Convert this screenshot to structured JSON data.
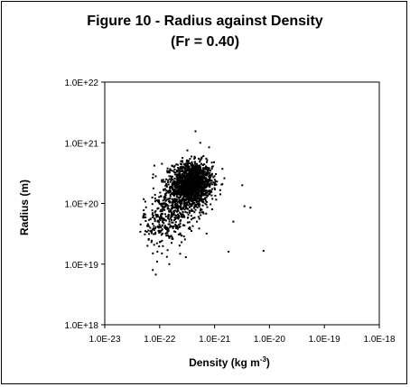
{
  "chart_data": {
    "type": "scatter",
    "title": "Figure 10 - Radius against  Density",
    "subtitle": "(Fr = 0.40)",
    "xlabel_main": "Density (kg m",
    "xlabel_sup": "-3",
    "xlabel_close": ")",
    "ylabel": "Radius (m)",
    "x_scale": "log",
    "y_scale": "log",
    "xlim": [
      1e-23,
      1e-18
    ],
    "ylim": [
      1e+18,
      1e+22
    ],
    "x_ticks": [
      "1.0E-23",
      "1.0E-22",
      "1.0E-21",
      "1.0E-20",
      "1.0E-19",
      "1.0E-18"
    ],
    "y_ticks": [
      "1.0E+18",
      "1.0E+19",
      "1.0E+20",
      "1.0E+21",
      "1.0E+22"
    ],
    "grid": false,
    "legend": "none",
    "marker_color": "#000000",
    "clusters": [
      {
        "center": [
          4e-22,
          2.2e+20
        ],
        "spread_log": [
          0.18,
          0.17
        ],
        "count": 1400
      },
      {
        "center": [
          2.5e-22,
          1.2e+20
        ],
        "spread_log": [
          0.22,
          0.2
        ],
        "count": 350
      },
      {
        "center": [
          1.3e-22,
          5e+19
        ],
        "spread_log": [
          0.2,
          0.2
        ],
        "count": 260
      }
    ],
    "outliers": [
      [
        4.5e-22,
        1.55e+21
      ],
      [
        5.5e-22,
        1e+21
      ],
      [
        3.2e-22,
        7.5e+20
      ],
      [
        7.6e-23,
        3e+20
      ],
      [
        8e-23,
        4.2e+20
      ],
      [
        1.1e-22,
        4.5e+20
      ],
      [
        8.5e-23,
        2.8e+20
      ],
      [
        3.2e-21,
        2e+20
      ],
      [
        3.5e-21,
        9e+19
      ],
      [
        2.2e-21,
        5e+19
      ],
      [
        1.8e-21,
        1.6e+19
      ],
      [
        4.5e-21,
        8.5e+19
      ],
      [
        7.8e-21,
        1.65e+19
      ],
      [
        5.5e-23,
        3.5e+19
      ],
      [
        4.5e-23,
        4.5e+19
      ],
      [
        5e-23,
        6e+19
      ],
      [
        7.5e-23,
        8e+18
      ],
      [
        8.5e-23,
        6.7e+18
      ],
      [
        9e-23,
        1.1e+19
      ],
      [
        6e-23,
        2e+19
      ],
      [
        1.5e-22,
        1e+19
      ],
      [
        3e-22,
        1.3e+19
      ],
      [
        1.1e-22,
        1.5e+19
      ]
    ]
  }
}
